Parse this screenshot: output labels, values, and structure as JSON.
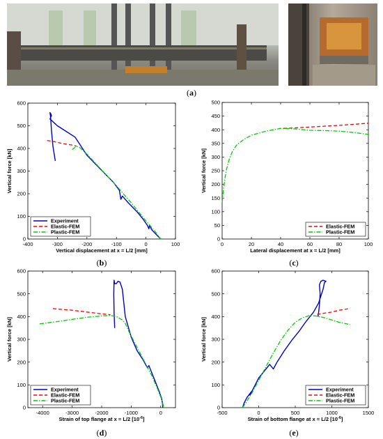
{
  "labels": {
    "a": "a",
    "b": "b",
    "c": "c",
    "d": "d",
    "e": "e"
  },
  "chart_data": [
    {
      "panel": "b",
      "type": "line",
      "xlabel": "Vertical displacement at x = L/2 [mm]",
      "ylabel": "Vertical force [kN]",
      "xlim": [
        -400,
        100
      ],
      "ylim": [
        0,
        600
      ],
      "xticks": [
        "-400",
        "-300",
        "-200",
        "-100",
        "0",
        "100"
      ],
      "yticks": [
        "0",
        "100",
        "200",
        "300",
        "400",
        "500",
        "600"
      ],
      "legend_position": "bottom-left",
      "series": [
        {
          "name": "Experiment",
          "color": "#0000cc",
          "style": "solid",
          "points": [
            [
              -307,
              345
            ],
            [
              -315,
              410
            ],
            [
              -320,
              480
            ],
            [
              -323,
              540
            ],
            [
              -325,
              558
            ],
            [
              -322,
              552
            ],
            [
              -320,
              545
            ],
            [
              -325,
              530
            ],
            [
              -300,
              500
            ],
            [
              -270,
              475
            ],
            [
              -240,
              450
            ],
            [
              -220,
              410
            ],
            [
              -200,
              370
            ],
            [
              -170,
              330
            ],
            [
              -140,
              290
            ],
            [
              -110,
              250
            ],
            [
              -90,
              215
            ],
            [
              -85,
              175
            ],
            [
              -80,
              190
            ],
            [
              -60,
              160
            ],
            [
              -30,
              120
            ],
            [
              -10,
              88
            ],
            [
              5,
              60
            ],
            [
              10,
              45
            ],
            [
              12,
              60
            ],
            [
              20,
              40
            ],
            [
              35,
              20
            ],
            [
              50,
              0
            ]
          ]
        },
        {
          "name": "Elastic-FEM",
          "color": "#ff0000",
          "style": "dashed",
          "points": [
            [
              -335,
              435
            ],
            [
              -310,
              430
            ],
            [
              -285,
              422
            ],
            [
              -265,
              418
            ],
            [
              -250,
              415
            ],
            [
              -235,
              410
            ]
          ]
        },
        {
          "name": "Plastic-FEM",
          "color": "#00cc00",
          "style": "dashdot",
          "points": [
            [
              -250,
              395
            ],
            [
              -240,
              405
            ],
            [
              -232,
              408
            ],
            [
              -225,
              405
            ],
            [
              -200,
              375
            ],
            [
              -150,
              305
            ],
            [
              -100,
              235
            ],
            [
              -50,
              160
            ],
            [
              0,
              80
            ],
            [
              30,
              35
            ],
            [
              50,
              0
            ]
          ]
        }
      ]
    },
    {
      "panel": "c",
      "type": "line",
      "xlabel": "Lateral displacement at x = L/2 [mm]",
      "ylabel": "Vertical force [kN]",
      "xlim": [
        0,
        100
      ],
      "ylim": [
        0,
        500
      ],
      "xticks": [
        "0",
        "20",
        "40",
        "60",
        "80",
        "100"
      ],
      "yticks": [
        "0",
        "50",
        "100",
        "150",
        "200",
        "250",
        "300",
        "350",
        "400",
        "450",
        "500"
      ],
      "legend_position": "bottom-right",
      "series": [
        {
          "name": "Elastic-FEM",
          "color": "#ff0000",
          "style": "dashed",
          "points": [
            [
              42,
              405
            ],
            [
              50,
              407
            ],
            [
              60,
              410
            ],
            [
              70,
              413
            ],
            [
              80,
              416
            ],
            [
              90,
              420
            ],
            [
              100,
              424
            ]
          ]
        },
        {
          "name": "Plastic-FEM",
          "color": "#00cc00",
          "style": "dashdot",
          "points": [
            [
              0,
              135
            ],
            [
              1,
              185
            ],
            [
              2,
              225
            ],
            [
              3,
              255
            ],
            [
              5,
              295
            ],
            [
              7,
              320
            ],
            [
              10,
              345
            ],
            [
              15,
              365
            ],
            [
              20,
              380
            ],
            [
              30,
              395
            ],
            [
              40,
              405
            ],
            [
              50,
              403
            ],
            [
              60,
              398
            ],
            [
              70,
              397
            ],
            [
              80,
              395
            ],
            [
              90,
              390
            ],
            [
              100,
              383
            ]
          ]
        }
      ]
    },
    {
      "panel": "d",
      "type": "line",
      "xlabel": "Strain of top flange at x = L/2 [10",
      "xlabel_sup": "-6",
      "xlabel_end": "]",
      "ylabel": "Vertical force [kN]",
      "xlim": [
        -4500,
        500
      ],
      "ylim": [
        0,
        600
      ],
      "xticks": [
        "-4000",
        "-3000",
        "-2000",
        "-1000",
        "0"
      ],
      "yticks": [
        "0",
        "100",
        "200",
        "300",
        "400",
        "500",
        "600"
      ],
      "legend_position": "bottom-left",
      "series": [
        {
          "name": "Experiment",
          "color": "#0000cc",
          "style": "solid",
          "points": [
            [
              -1560,
              350
            ],
            [
              -1580,
              420
            ],
            [
              -1590,
              500
            ],
            [
              -1580,
              560
            ],
            [
              -1560,
              545
            ],
            [
              -1500,
              545
            ],
            [
              -1450,
              555
            ],
            [
              -1380,
              552
            ],
            [
              -1300,
              520
            ],
            [
              -1200,
              400
            ],
            [
              -1000,
              310
            ],
            [
              -800,
              250
            ],
            [
              -600,
              210
            ],
            [
              -450,
              175
            ],
            [
              -400,
              185
            ],
            [
              -200,
              120
            ],
            [
              -50,
              70
            ],
            [
              30,
              40
            ],
            [
              60,
              20
            ],
            [
              70,
              0
            ]
          ]
        },
        {
          "name": "Elastic-FEM",
          "color": "#ff0000",
          "style": "dashed",
          "points": [
            [
              -3650,
              435
            ],
            [
              -3000,
              428
            ],
            [
              -2500,
              420
            ],
            [
              -2000,
              412
            ],
            [
              -1700,
              408
            ]
          ]
        },
        {
          "name": "Plastic-FEM",
          "color": "#00cc00",
          "style": "dashdot",
          "points": [
            [
              -4100,
              368
            ],
            [
              -3500,
              378
            ],
            [
              -3000,
              388
            ],
            [
              -2500,
              397
            ],
            [
              -2000,
              403
            ],
            [
              -1700,
              405
            ],
            [
              -1500,
              400
            ],
            [
              -1300,
              385
            ],
            [
              -1200,
              370
            ],
            [
              -1100,
              340
            ],
            [
              -900,
              290
            ],
            [
              -700,
              240
            ],
            [
              -500,
              190
            ],
            [
              -300,
              140
            ],
            [
              -100,
              80
            ],
            [
              50,
              30
            ],
            [
              100,
              0
            ]
          ]
        }
      ]
    },
    {
      "panel": "e",
      "type": "line",
      "xlabel": "Strain of bottom flange at x = L/2 [10",
      "xlabel_sup": "-6",
      "xlabel_end": "]",
      "ylabel": "Vertical force [kN]",
      "xlim": [
        -500,
        1500
      ],
      "ylim": [
        0,
        600
      ],
      "xticks": [
        "-500",
        "0",
        "500",
        "1000",
        "1500"
      ],
      "yticks": [
        "0",
        "100",
        "200",
        "300",
        "400",
        "500",
        "600"
      ],
      "legend_position": "bottom-right",
      "series": [
        {
          "name": "Experiment",
          "color": "#0000cc",
          "style": "solid",
          "points": [
            [
              -220,
              0
            ],
            [
              -200,
              20
            ],
            [
              -160,
              45
            ],
            [
              -100,
              70
            ],
            [
              -120,
              55
            ],
            [
              -80,
              80
            ],
            [
              0,
              130
            ],
            [
              100,
              170
            ],
            [
              150,
              190
            ],
            [
              200,
              170
            ],
            [
              250,
              200
            ],
            [
              350,
              250
            ],
            [
              450,
              295
            ],
            [
              550,
              335
            ],
            [
              650,
              380
            ],
            [
              750,
              420
            ],
            [
              820,
              460
            ],
            [
              880,
              520
            ],
            [
              900,
              550
            ],
            [
              920,
              555
            ],
            [
              880,
              560
            ],
            [
              850,
              555
            ],
            [
              830,
              540
            ],
            [
              840,
              500
            ],
            [
              830,
              450
            ],
            [
              820,
              420
            ],
            [
              810,
              400
            ]
          ]
        },
        {
          "name": "Elastic-FEM",
          "color": "#ff0000",
          "style": "dashed",
          "points": [
            [
              800,
              410
            ],
            [
              900,
              415
            ],
            [
              1000,
              420
            ],
            [
              1100,
              428
            ],
            [
              1200,
              433
            ],
            [
              1250,
              437
            ]
          ]
        },
        {
          "name": "Plastic-FEM",
          "color": "#00cc00",
          "style": "dashdot",
          "points": [
            [
              -220,
              0
            ],
            [
              -100,
              60
            ],
            [
              0,
              120
            ],
            [
              100,
              180
            ],
            [
              200,
              240
            ],
            [
              300,
              295
            ],
            [
              400,
              340
            ],
            [
              500,
              375
            ],
            [
              600,
              395
            ],
            [
              700,
              405
            ],
            [
              800,
              402
            ],
            [
              900,
              395
            ],
            [
              1000,
              385
            ],
            [
              1100,
              375
            ],
            [
              1250,
              365
            ]
          ]
        }
      ]
    }
  ]
}
